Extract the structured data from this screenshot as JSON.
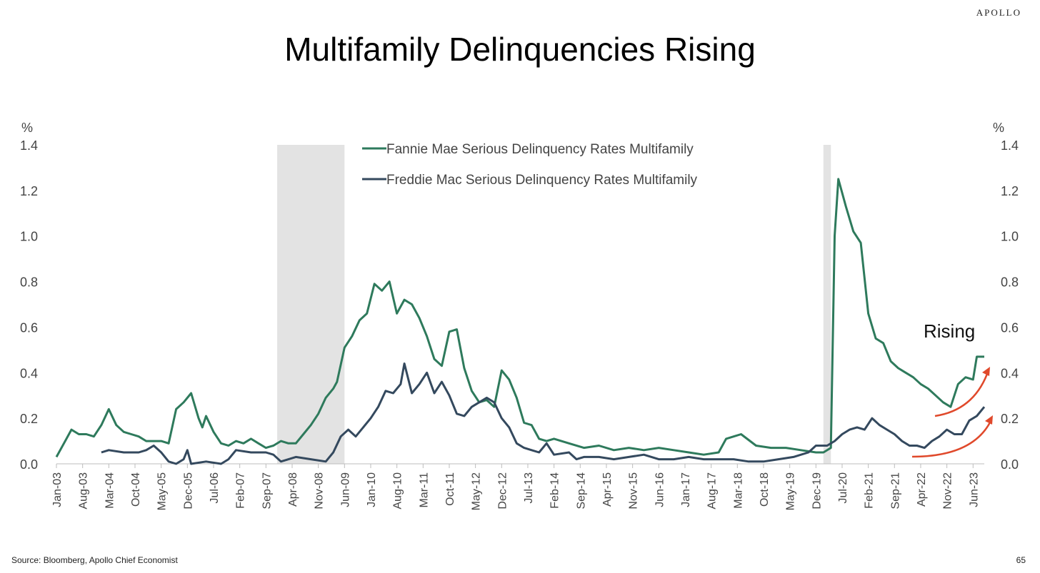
{
  "header": {
    "brand": "APOLLO"
  },
  "footer": {
    "source": "Source: Bloomberg, Apollo Chief Economist",
    "page_number": "65"
  },
  "colors": {
    "fannie": "#2e7a5c",
    "freddie": "#34495e",
    "recession": "#e3e3e3",
    "arrow": "#e0492b"
  },
  "chart_data": {
    "type": "line",
    "title": "Multifamily Delinquencies Rising",
    "ylabel_left": "%",
    "ylabel_right": "%",
    "ylim": [
      0,
      1.4
    ],
    "yticks": [
      "0.0",
      "0.2",
      "0.4",
      "0.6",
      "0.8",
      "1.0",
      "1.2",
      "1.4"
    ],
    "x_start": "2003-01",
    "x_end": "2023-09",
    "x_tick_labels": [
      "Jan-03",
      "Aug-03",
      "Mar-04",
      "Oct-04",
      "May-05",
      "Dec-05",
      "Jul-06",
      "Feb-07",
      "Sep-07",
      "Apr-08",
      "Nov-08",
      "Jun-09",
      "Jan-10",
      "Aug-10",
      "Mar-11",
      "Oct-11",
      "May-12",
      "Dec-12",
      "Jul-13",
      "Feb-14",
      "Sep-14",
      "Apr-15",
      "Nov-15",
      "Jun-16",
      "Jan-17",
      "Aug-17",
      "Mar-18",
      "Oct-18",
      "May-19",
      "Dec-19",
      "Jul-20",
      "Feb-21",
      "Sep-21",
      "Apr-22",
      "Nov-22",
      "Jun-23"
    ],
    "legend_position": "top-center",
    "grid": false,
    "recessions": [
      {
        "start": "2007-12",
        "end": "2009-06"
      },
      {
        "start": "2020-02",
        "end": "2020-04"
      }
    ],
    "annotation": "Rising",
    "series": [
      {
        "name": "Fannie Mae Serious Delinquency Rates Multifamily",
        "points": [
          [
            "2003-01",
            0.03
          ],
          [
            "2003-03",
            0.09
          ],
          [
            "2003-05",
            0.15
          ],
          [
            "2003-07",
            0.13
          ],
          [
            "2003-09",
            0.13
          ],
          [
            "2003-11",
            0.12
          ],
          [
            "2004-01",
            0.17
          ],
          [
            "2004-03",
            0.24
          ],
          [
            "2004-05",
            0.17
          ],
          [
            "2004-07",
            0.14
          ],
          [
            "2004-09",
            0.13
          ],
          [
            "2004-11",
            0.12
          ],
          [
            "2005-01",
            0.1
          ],
          [
            "2005-03",
            0.1
          ],
          [
            "2005-05",
            0.1
          ],
          [
            "2005-07",
            0.09
          ],
          [
            "2005-09",
            0.24
          ],
          [
            "2005-11",
            0.27
          ],
          [
            "2006-01",
            0.31
          ],
          [
            "2006-03",
            0.2
          ],
          [
            "2006-04",
            0.16
          ],
          [
            "2006-05",
            0.21
          ],
          [
            "2006-07",
            0.14
          ],
          [
            "2006-09",
            0.09
          ],
          [
            "2006-11",
            0.08
          ],
          [
            "2007-01",
            0.1
          ],
          [
            "2007-03",
            0.09
          ],
          [
            "2007-05",
            0.11
          ],
          [
            "2007-07",
            0.09
          ],
          [
            "2007-09",
            0.07
          ],
          [
            "2007-11",
            0.08
          ],
          [
            "2008-01",
            0.1
          ],
          [
            "2008-03",
            0.09
          ],
          [
            "2008-05",
            0.09
          ],
          [
            "2008-07",
            0.13
          ],
          [
            "2008-09",
            0.17
          ],
          [
            "2008-11",
            0.22
          ],
          [
            "2009-01",
            0.29
          ],
          [
            "2009-03",
            0.33
          ],
          [
            "2009-04",
            0.36
          ],
          [
            "2009-06",
            0.51
          ],
          [
            "2009-08",
            0.56
          ],
          [
            "2009-10",
            0.63
          ],
          [
            "2009-12",
            0.66
          ],
          [
            "2010-02",
            0.79
          ],
          [
            "2010-04",
            0.76
          ],
          [
            "2010-06",
            0.8
          ],
          [
            "2010-08",
            0.66
          ],
          [
            "2010-10",
            0.72
          ],
          [
            "2010-12",
            0.7
          ],
          [
            "2011-02",
            0.64
          ],
          [
            "2011-04",
            0.56
          ],
          [
            "2011-06",
            0.46
          ],
          [
            "2011-08",
            0.43
          ],
          [
            "2011-10",
            0.58
          ],
          [
            "2011-12",
            0.59
          ],
          [
            "2012-02",
            0.42
          ],
          [
            "2012-04",
            0.32
          ],
          [
            "2012-06",
            0.27
          ],
          [
            "2012-08",
            0.28
          ],
          [
            "2012-10",
            0.25
          ],
          [
            "2012-12",
            0.41
          ],
          [
            "2013-02",
            0.37
          ],
          [
            "2013-04",
            0.29
          ],
          [
            "2013-06",
            0.18
          ],
          [
            "2013-08",
            0.17
          ],
          [
            "2013-10",
            0.11
          ],
          [
            "2013-12",
            0.1
          ],
          [
            "2014-02",
            0.11
          ],
          [
            "2014-06",
            0.09
          ],
          [
            "2014-10",
            0.07
          ],
          [
            "2015-02",
            0.08
          ],
          [
            "2015-06",
            0.06
          ],
          [
            "2015-10",
            0.07
          ],
          [
            "2016-02",
            0.06
          ],
          [
            "2016-06",
            0.07
          ],
          [
            "2016-10",
            0.06
          ],
          [
            "2017-02",
            0.05
          ],
          [
            "2017-06",
            0.04
          ],
          [
            "2017-10",
            0.05
          ],
          [
            "2017-12",
            0.11
          ],
          [
            "2018-02",
            0.12
          ],
          [
            "2018-04",
            0.13
          ],
          [
            "2018-08",
            0.08
          ],
          [
            "2018-12",
            0.07
          ],
          [
            "2019-04",
            0.07
          ],
          [
            "2019-08",
            0.06
          ],
          [
            "2019-12",
            0.05
          ],
          [
            "2020-02",
            0.05
          ],
          [
            "2020-04",
            0.07
          ],
          [
            "2020-05",
            1.0
          ],
          [
            "2020-06",
            1.25
          ],
          [
            "2020-08",
            1.13
          ],
          [
            "2020-10",
            1.02
          ],
          [
            "2020-12",
            0.97
          ],
          [
            "2021-02",
            0.66
          ],
          [
            "2021-04",
            0.55
          ],
          [
            "2021-06",
            0.53
          ],
          [
            "2021-08",
            0.45
          ],
          [
            "2021-10",
            0.42
          ],
          [
            "2021-12",
            0.4
          ],
          [
            "2022-02",
            0.38
          ],
          [
            "2022-04",
            0.35
          ],
          [
            "2022-06",
            0.33
          ],
          [
            "2022-08",
            0.3
          ],
          [
            "2022-10",
            0.27
          ],
          [
            "2022-12",
            0.25
          ],
          [
            "2023-02",
            0.35
          ],
          [
            "2023-04",
            0.38
          ],
          [
            "2023-06",
            0.37
          ],
          [
            "2023-07",
            0.47
          ],
          [
            "2023-09",
            0.47
          ]
        ]
      },
      {
        "name": "Freddie Mac Serious Delinquency Rates Multifamily",
        "points": [
          [
            "2004-01",
            0.05
          ],
          [
            "2004-03",
            0.06
          ],
          [
            "2004-07",
            0.05
          ],
          [
            "2004-11",
            0.05
          ],
          [
            "2005-01",
            0.06
          ],
          [
            "2005-03",
            0.08
          ],
          [
            "2005-05",
            0.05
          ],
          [
            "2005-07",
            0.01
          ],
          [
            "2005-09",
            0.0
          ],
          [
            "2005-11",
            0.02
          ],
          [
            "2005-12",
            0.06
          ],
          [
            "2006-01",
            0.0
          ],
          [
            "2006-05",
            0.01
          ],
          [
            "2006-09",
            0.0
          ],
          [
            "2006-11",
            0.02
          ],
          [
            "2007-01",
            0.06
          ],
          [
            "2007-05",
            0.05
          ],
          [
            "2007-09",
            0.05
          ],
          [
            "2007-11",
            0.04
          ],
          [
            "2008-01",
            0.01
          ],
          [
            "2008-05",
            0.03
          ],
          [
            "2008-09",
            0.02
          ],
          [
            "2009-01",
            0.01
          ],
          [
            "2009-03",
            0.05
          ],
          [
            "2009-05",
            0.12
          ],
          [
            "2009-07",
            0.15
          ],
          [
            "2009-09",
            0.12
          ],
          [
            "2009-11",
            0.16
          ],
          [
            "2010-01",
            0.2
          ],
          [
            "2010-03",
            0.25
          ],
          [
            "2010-05",
            0.32
          ],
          [
            "2010-07",
            0.31
          ],
          [
            "2010-09",
            0.35
          ],
          [
            "2010-10",
            0.44
          ],
          [
            "2010-12",
            0.31
          ],
          [
            "2011-02",
            0.35
          ],
          [
            "2011-04",
            0.4
          ],
          [
            "2011-06",
            0.31
          ],
          [
            "2011-08",
            0.36
          ],
          [
            "2011-10",
            0.3
          ],
          [
            "2011-12",
            0.22
          ],
          [
            "2012-02",
            0.21
          ],
          [
            "2012-04",
            0.25
          ],
          [
            "2012-06",
            0.27
          ],
          [
            "2012-08",
            0.29
          ],
          [
            "2012-10",
            0.27
          ],
          [
            "2012-12",
            0.2
          ],
          [
            "2013-02",
            0.16
          ],
          [
            "2013-04",
            0.09
          ],
          [
            "2013-06",
            0.07
          ],
          [
            "2013-08",
            0.06
          ],
          [
            "2013-10",
            0.05
          ],
          [
            "2013-12",
            0.09
          ],
          [
            "2014-02",
            0.04
          ],
          [
            "2014-06",
            0.05
          ],
          [
            "2014-08",
            0.02
          ],
          [
            "2014-10",
            0.03
          ],
          [
            "2015-02",
            0.03
          ],
          [
            "2015-06",
            0.02
          ],
          [
            "2015-10",
            0.03
          ],
          [
            "2016-02",
            0.04
          ],
          [
            "2016-06",
            0.02
          ],
          [
            "2016-10",
            0.02
          ],
          [
            "2017-02",
            0.03
          ],
          [
            "2017-06",
            0.02
          ],
          [
            "2017-10",
            0.02
          ],
          [
            "2018-02",
            0.02
          ],
          [
            "2018-06",
            0.01
          ],
          [
            "2018-10",
            0.01
          ],
          [
            "2019-02",
            0.02
          ],
          [
            "2019-06",
            0.03
          ],
          [
            "2019-10",
            0.05
          ],
          [
            "2019-12",
            0.08
          ],
          [
            "2020-03",
            0.08
          ],
          [
            "2020-05",
            0.1
          ],
          [
            "2020-07",
            0.13
          ],
          [
            "2020-09",
            0.15
          ],
          [
            "2020-11",
            0.16
          ],
          [
            "2021-01",
            0.15
          ],
          [
            "2021-03",
            0.2
          ],
          [
            "2021-05",
            0.17
          ],
          [
            "2021-07",
            0.15
          ],
          [
            "2021-09",
            0.13
          ],
          [
            "2021-11",
            0.1
          ],
          [
            "2022-01",
            0.08
          ],
          [
            "2022-03",
            0.08
          ],
          [
            "2022-05",
            0.07
          ],
          [
            "2022-07",
            0.1
          ],
          [
            "2022-09",
            0.12
          ],
          [
            "2022-11",
            0.15
          ],
          [
            "2023-01",
            0.13
          ],
          [
            "2023-03",
            0.13
          ],
          [
            "2023-05",
            0.19
          ],
          [
            "2023-07",
            0.21
          ],
          [
            "2023-09",
            0.25
          ]
        ]
      }
    ]
  }
}
